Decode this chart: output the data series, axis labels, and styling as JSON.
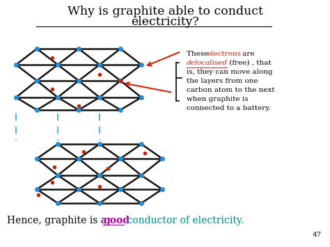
{
  "title_line1": "Why is graphite able to conduct",
  "title_line2": "electricity?",
  "bg_color": "#ffffff",
  "node_color": "#1e8fdd",
  "electron_color": "#cc2200",
  "bond_color": "#111111",
  "dashed_color": "#4ab8e8",
  "arrow_color": "#cc2200",
  "text_color": "#000000",
  "orange_color": "#cc2200",
  "purple_color": "#aa00aa",
  "teal_color": "#008888",
  "page_num": "47"
}
